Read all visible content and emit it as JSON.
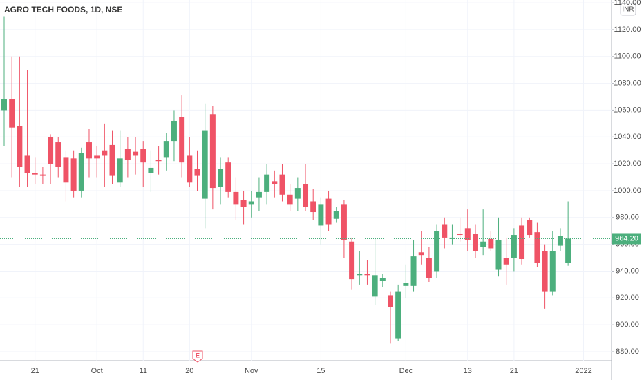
{
  "chart_data": {
    "type": "candlestick",
    "title": "AGRO TECH FOODS, 1D, NSE",
    "currency": "INR",
    "earnings_marker": "E",
    "categories": [
      null,
      null,
      null,
      null,
      "21",
      null,
      null,
      null,
      null,
      null,
      null,
      null,
      "Oct",
      null,
      null,
      null,
      null,
      null,
      "11",
      null,
      null,
      null,
      null,
      null,
      "20",
      null,
      null,
      null,
      null,
      null,
      null,
      null,
      "Nov",
      null,
      null,
      null,
      null,
      null,
      null,
      null,
      null,
      "15",
      null,
      null,
      null,
      null,
      null,
      null,
      null,
      null,
      null,
      null,
      "Dec",
      null,
      null,
      null,
      null,
      null,
      null,
      null,
      "13",
      null,
      null,
      null,
      null,
      null,
      "21",
      null,
      null,
      null,
      null,
      null,
      null,
      null,
      null,
      "2022"
    ],
    "open": [
      1060,
      1068,
      1048,
      1026,
      1013,
      1012,
      1040,
      1036,
      1025,
      1024,
      1000,
      1036,
      1026,
      1030,
      1034,
      1006,
      1031,
      1029,
      1031,
      1013,
      1023,
      1025,
      1037,
      1055,
      1026,
      1016,
      994,
      1057,
      1003,
      1021,
      999,
      993,
      990,
      995,
      999,
      1007,
      1012,
      997,
      994,
      1005,
      992,
      974,
      994,
      979,
      990,
      962,
      937,
      938,
      921,
      933,
      922,
      890,
      929,
      929,
      954,
      950,
      940,
      975,
      964,
      968,
      972,
      968,
      958,
      964,
      941,
      950,
      950,
      974,
      978,
      969,
      955,
      925,
      959,
      946,
      null,
      null
    ],
    "high": [
      1130,
      1100,
      1100,
      1090,
      1025,
      1018,
      1042,
      1040,
      1030,
      1030,
      1032,
      1046,
      1033,
      1050,
      1045,
      1045,
      1040,
      1040,
      1037,
      1030,
      1033,
      1043,
      1060,
      1071,
      1040,
      1030,
      1065,
      1063,
      1025,
      1025,
      1010,
      1000,
      1000,
      1010,
      1020,
      1015,
      1020,
      1005,
      1010,
      1020,
      1001,
      995,
      1000,
      988,
      993,
      965,
      955,
      948,
      965,
      938,
      925,
      930,
      945,
      963,
      970,
      958,
      975,
      980,
      975,
      980,
      986,
      975,
      986,
      970,
      980,
      965,
      972,
      980,
      980,
      976,
      960,
      970,
      972,
      992,
      null,
      null
    ],
    "low": [
      1033,
      1010,
      1003,
      1003,
      1005,
      1005,
      1005,
      1010,
      992,
      995,
      995,
      1010,
      1010,
      1003,
      1005,
      1003,
      1010,
      1012,
      1003,
      999,
      1012,
      1015,
      1022,
      1010,
      1003,
      1000,
      972,
      986,
      990,
      995,
      978,
      975,
      980,
      985,
      990,
      995,
      992,
      985,
      985,
      985,
      978,
      960,
      970,
      976,
      950,
      926,
      930,
      930,
      915,
      928,
      886,
      888,
      920,
      925,
      945,
      932,
      935,
      957,
      960,
      962,
      955,
      950,
      952,
      955,
      936,
      930,
      940,
      945,
      965,
      943,
      912,
      922,
      955,
      944,
      null,
      null
    ],
    "close": [
      1068,
      1047,
      1018,
      1013,
      1012,
      1011,
      1020,
      1018,
      1006,
      1000,
      1028,
      1024,
      1024,
      1026,
      1011,
      1024,
      1023,
      1026,
      1021,
      1017,
      1022,
      1037,
      1052,
      1021,
      1006,
      1011,
      1045,
      1002,
      1016,
      999,
      990,
      988,
      992,
      999,
      1012,
      1005,
      997,
      990,
      1002,
      988,
      984,
      990,
      975,
      985,
      963,
      934,
      938,
      937,
      937,
      935,
      913,
      925,
      931,
      951,
      952,
      935,
      970,
      965,
      965,
      967,
      963,
      955,
      962,
      957,
      963,
      945,
      967,
      949,
      967,
      946,
      925,
      955,
      966,
      964.2,
      null,
      null
    ],
    "last_price": {
      "value": 964.2,
      "label": "964.20"
    },
    "up_color": "#4caf7d",
    "down_color": "#ef5366",
    "ylim": [
      873.3,
      1142.1
    ],
    "yticks": [
      {
        "value": 880,
        "label": "880.00"
      },
      {
        "value": 900,
        "label": "900.00"
      },
      {
        "value": 920,
        "label": "920.00"
      },
      {
        "value": 940,
        "label": "940.00"
      },
      {
        "value": 960,
        "label": "960.00"
      },
      {
        "value": 980,
        "label": "980.00"
      },
      {
        "value": 1000,
        "label": "1000.00"
      },
      {
        "value": 1020,
        "label": "1020.00"
      },
      {
        "value": 1040,
        "label": "1040.00"
      },
      {
        "value": 1060,
        "label": "1060.00"
      },
      {
        "value": 1080,
        "label": "1080.00"
      },
      {
        "value": 1100,
        "label": "1100.00"
      },
      {
        "value": 1120,
        "label": "1120.00"
      },
      {
        "value": 1140,
        "label": "1140.00"
      }
    ],
    "grid": true
  }
}
